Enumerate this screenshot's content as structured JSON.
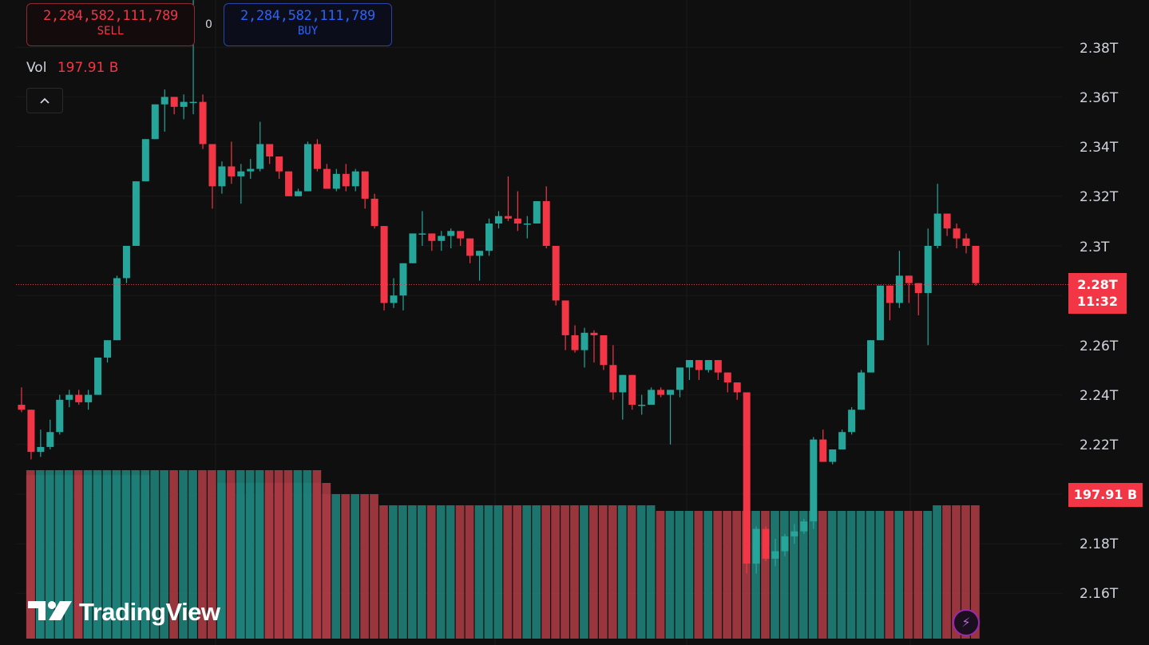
{
  "trade_panel": {
    "sell_price": "2,284,582,111,789",
    "sell_label": "SELL",
    "spread": "0",
    "buy_price": "2,284,582,111,789",
    "buy_label": "BUY"
  },
  "volume_legend": {
    "title": "Vol",
    "value": "197.91 B"
  },
  "collapse_icon": "chevron-up-icon",
  "price_axis": {
    "ticks": [
      "2.38T",
      "2.36T",
      "2.34T",
      "2.32T",
      "2.3T",
      "2.26T",
      "2.24T",
      "2.22T",
      "2.18T",
      "2.16T"
    ]
  },
  "current_price": {
    "value": "2.28T",
    "countdown": "11:32"
  },
  "current_volume": "197.91 B",
  "logo": {
    "text": "TradingView"
  },
  "colors": {
    "up": "#26a69a",
    "down": "#f23645",
    "background": "#0f0f0f"
  },
  "chart_data": {
    "type": "candlestick",
    "units": "T",
    "ylim": [
      2.15,
      2.405
    ],
    "current_price": 2.2844,
    "candles": [
      [
        2.236,
        2.243,
        2.233,
        2.234
      ],
      [
        2.234,
        2.234,
        2.214,
        2.217
      ],
      [
        2.217,
        2.226,
        2.215,
        2.219
      ],
      [
        2.219,
        2.23,
        2.218,
        2.225
      ],
      [
        2.225,
        2.24,
        2.224,
        2.238
      ],
      [
        2.238,
        2.242,
        2.235,
        2.24
      ],
      [
        2.24,
        2.242,
        2.236,
        2.237
      ],
      [
        2.237,
        2.242,
        2.234,
        2.24
      ],
      [
        2.24,
        2.255,
        2.24,
        2.255
      ],
      [
        2.255,
        2.262,
        2.253,
        2.262
      ],
      [
        2.262,
        2.288,
        2.262,
        2.287
      ],
      [
        2.287,
        2.3,
        2.285,
        2.3
      ],
      [
        2.3,
        2.326,
        2.3,
        2.326
      ],
      [
        2.326,
        2.343,
        2.326,
        2.343
      ],
      [
        2.343,
        2.357,
        2.343,
        2.357
      ],
      [
        2.357,
        2.363,
        2.346,
        2.36
      ],
      [
        2.36,
        2.36,
        2.353,
        2.356
      ],
      [
        2.356,
        2.361,
        2.351,
        2.358
      ],
      [
        2.358,
        2.399,
        2.353,
        2.358
      ],
      [
        2.358,
        2.361,
        2.339,
        2.341
      ],
      [
        2.341,
        2.341,
        2.315,
        2.324
      ],
      [
        2.324,
        2.334,
        2.321,
        2.332
      ],
      [
        2.332,
        2.342,
        2.325,
        2.328
      ],
      [
        2.328,
        2.333,
        2.317,
        2.33
      ],
      [
        2.33,
        2.335,
        2.327,
        2.331
      ],
      [
        2.331,
        2.35,
        2.33,
        2.341
      ],
      [
        2.341,
        2.341,
        2.333,
        2.336
      ],
      [
        2.336,
        2.336,
        2.327,
        2.33
      ],
      [
        2.33,
        2.33,
        2.32,
        2.32
      ],
      [
        2.32,
        2.323,
        2.32,
        2.322
      ],
      [
        2.322,
        2.342,
        2.322,
        2.341
      ],
      [
        2.341,
        2.343,
        2.33,
        2.331
      ],
      [
        2.331,
        2.333,
        2.323,
        2.323
      ],
      [
        2.323,
        2.331,
        2.322,
        2.329
      ],
      [
        2.329,
        2.333,
        2.322,
        2.324
      ],
      [
        2.324,
        2.331,
        2.322,
        2.33
      ],
      [
        2.33,
        2.33,
        2.315,
        2.319
      ],
      [
        2.319,
        2.321,
        2.307,
        2.308
      ],
      [
        2.308,
        2.308,
        2.274,
        2.277
      ],
      [
        2.277,
        2.287,
        2.275,
        2.28
      ],
      [
        2.28,
        2.293,
        2.274,
        2.293
      ],
      [
        2.293,
        2.305,
        2.293,
        2.305
      ],
      [
        2.305,
        2.314,
        2.3,
        2.305
      ],
      [
        2.305,
        2.305,
        2.298,
        2.302
      ],
      [
        2.302,
        2.306,
        2.298,
        2.304
      ],
      [
        2.304,
        2.307,
        2.299,
        2.306
      ],
      [
        2.306,
        2.306,
        2.3,
        2.303
      ],
      [
        2.303,
        2.303,
        2.293,
        2.296
      ],
      [
        2.296,
        2.298,
        2.286,
        2.298
      ],
      [
        2.298,
        2.311,
        2.296,
        2.309
      ],
      [
        2.309,
        2.314,
        2.307,
        2.312
      ],
      [
        2.312,
        2.328,
        2.31,
        2.311
      ],
      [
        2.311,
        2.322,
        2.306,
        2.309
      ],
      [
        2.309,
        2.312,
        2.303,
        2.309
      ],
      [
        2.309,
        2.318,
        2.309,
        2.318
      ],
      [
        2.318,
        2.324,
        2.299,
        2.3
      ],
      [
        2.3,
        2.3,
        2.276,
        2.278
      ],
      [
        2.278,
        2.278,
        2.258,
        2.264
      ],
      [
        2.264,
        2.268,
        2.257,
        2.258
      ],
      [
        2.258,
        2.267,
        2.251,
        2.265
      ],
      [
        2.265,
        2.266,
        2.253,
        2.264
      ],
      [
        2.264,
        2.264,
        2.25,
        2.252
      ],
      [
        2.252,
        2.26,
        2.238,
        2.241
      ],
      [
        2.241,
        2.248,
        2.23,
        2.248
      ],
      [
        2.248,
        2.248,
        2.234,
        2.236
      ],
      [
        2.236,
        2.24,
        2.232,
        2.236
      ],
      [
        2.236,
        2.243,
        2.236,
        2.242
      ],
      [
        2.242,
        2.243,
        2.239,
        2.24
      ],
      [
        2.24,
        2.242,
        2.22,
        2.242
      ],
      [
        2.242,
        2.251,
        2.239,
        2.251
      ],
      [
        2.251,
        2.254,
        2.246,
        2.254
      ],
      [
        2.254,
        2.254,
        2.246,
        2.25
      ],
      [
        2.25,
        2.254,
        2.249,
        2.254
      ],
      [
        2.254,
        2.254,
        2.246,
        2.249
      ],
      [
        2.249,
        2.249,
        2.241,
        2.245
      ],
      [
        2.245,
        2.245,
        2.238,
        2.241
      ],
      [
        2.241,
        2.241,
        2.168,
        2.172
      ],
      [
        2.172,
        2.187,
        2.168,
        2.186
      ],
      [
        2.186,
        2.187,
        2.173,
        2.174
      ],
      [
        2.174,
        2.182,
        2.171,
        2.177
      ],
      [
        2.177,
        2.184,
        2.175,
        2.183
      ],
      [
        2.183,
        2.188,
        2.18,
        2.185
      ],
      [
        2.185,
        2.19,
        2.184,
        2.189
      ],
      [
        2.189,
        2.223,
        2.186,
        2.222
      ],
      [
        2.222,
        2.226,
        2.213,
        2.213
      ],
      [
        2.213,
        2.218,
        2.212,
        2.218
      ],
      [
        2.218,
        2.226,
        2.218,
        2.225
      ],
      [
        2.225,
        2.235,
        2.224,
        2.234
      ],
      [
        2.234,
        2.25,
        2.234,
        2.249
      ],
      [
        2.249,
        2.262,
        2.249,
        2.262
      ],
      [
        2.262,
        2.284,
        2.262,
        2.284
      ],
      [
        2.284,
        2.284,
        2.27,
        2.277
      ],
      [
        2.277,
        2.298,
        2.275,
        2.288
      ],
      [
        2.288,
        2.288,
        2.277,
        2.285
      ],
      [
        2.285,
        2.285,
        2.272,
        2.281
      ],
      [
        2.281,
        2.307,
        2.26,
        2.3
      ],
      [
        2.3,
        2.325,
        2.299,
        2.313
      ],
      [
        2.313,
        2.313,
        2.304,
        2.307
      ],
      [
        2.307,
        2.309,
        2.299,
        2.303
      ],
      [
        2.303,
        2.305,
        2.297,
        2.3
      ],
      [
        2.3,
        2.3,
        2.284,
        2.285
      ]
    ],
    "volume": {
      "current": "197.91 B",
      "bars": [
        [
          0,
          1,
          31
        ],
        [
          1,
          1,
          13
        ],
        [
          1,
          1,
          1
        ],
        [
          2,
          21,
          32
        ],
        [
          2,
          22,
          22
        ],
        [
          3,
          23,
          35
        ],
        [
          3,
          36,
          37
        ],
        [
          4,
          38,
          60
        ],
        [
          4,
          61,
          61
        ],
        [
          4,
          62,
          63
        ],
        [
          4,
          64,
          66
        ],
        [
          5,
          67,
          75
        ],
        [
          6,
          76,
          76
        ],
        [
          7,
          77,
          77
        ],
        [
          7,
          78,
          78
        ],
        [
          7,
          79,
          79
        ],
        [
          7,
          80,
          80
        ],
        [
          7,
          81,
          81
        ],
        [
          7,
          82,
          82
        ],
        [
          7,
          83,
          83
        ],
        [
          6,
          84,
          84
        ],
        [
          6,
          85,
          85
        ],
        [
          6,
          86,
          86
        ],
        [
          6,
          87,
          87
        ],
        [
          6,
          88,
          88
        ],
        [
          6,
          89,
          89
        ],
        [
          6,
          90,
          90
        ],
        [
          6,
          91,
          91
        ],
        [
          6,
          92,
          92
        ],
        [
          6,
          93,
          93
        ],
        [
          5,
          94,
          94
        ],
        [
          5,
          95,
          95
        ],
        [
          4,
          96,
          96
        ],
        [
          4,
          97,
          97
        ],
        [
          4,
          98,
          98
        ],
        [
          4,
          99,
          99
        ],
        [
          4,
          100,
          100
        ]
      ]
    }
  }
}
